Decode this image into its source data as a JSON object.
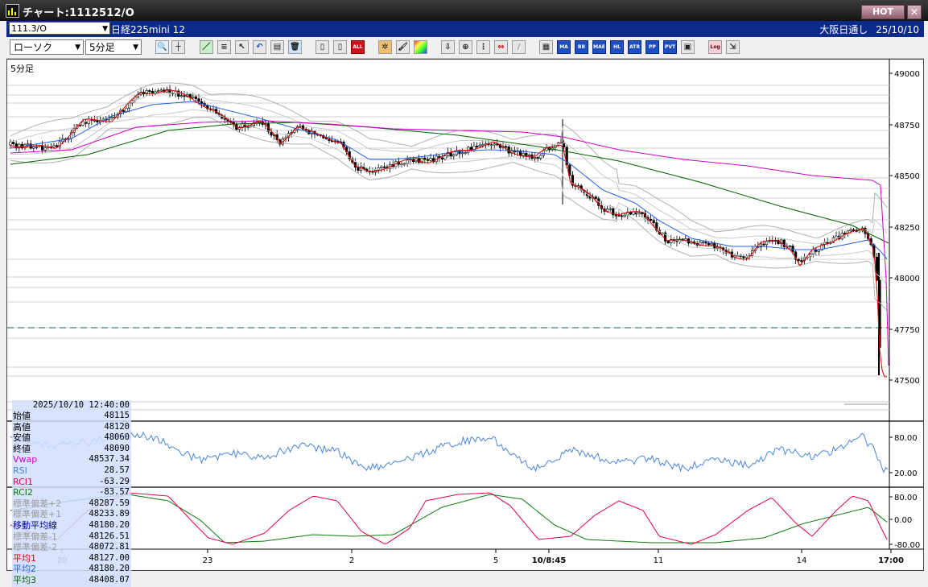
{
  "window": {
    "title": "チャート:1112512/O",
    "hot_label": "HOT",
    "close_label": "✕"
  },
  "infobar": {
    "symbol": "111.3/O",
    "instrument": "日経225mini 12",
    "session": "大阪日通し",
    "date": "25/10/10"
  },
  "toolbar": {
    "chart_style": "ローソク",
    "timeframe": "5分足",
    "all_label": "ALL"
  },
  "chart": {
    "period_label": "5分足",
    "price_axis": [
      "49000",
      "48750",
      "48500",
      "48250",
      "48000",
      "47750",
      "47500"
    ],
    "rsi_axis": [
      "80.00",
      "20.00"
    ],
    "rci_axis": [
      "80.00",
      "0.00",
      "-80.00"
    ],
    "time_axis": [
      {
        "label": "20",
        "bold": false
      },
      {
        "label": "23",
        "bold": false
      },
      {
        "label": "2",
        "bold": false
      },
      {
        "label": "5",
        "bold": false
      },
      {
        "label": "10/8:45",
        "bold": true
      },
      {
        "label": "11",
        "bold": false
      },
      {
        "label": "14",
        "bold": false
      },
      {
        "label": "17:00",
        "bold": true
      }
    ]
  },
  "ohlc": {
    "datetime": "2025/10/10  12:40:00",
    "rows": [
      {
        "label": "始値",
        "value": "48115",
        "color": "#000000"
      },
      {
        "label": "高値",
        "value": "48120",
        "color": "#000000"
      },
      {
        "label": "安値",
        "value": "48060",
        "color": "#000000"
      },
      {
        "label": "終値",
        "value": "48090",
        "color": "#000000"
      },
      {
        "label": "Vwap",
        "value": "48537.34",
        "color": "#d000c8"
      },
      {
        "label": "RSI",
        "value": "28.57",
        "color": "#4a86d8"
      },
      {
        "label": "RCI1",
        "value": "-63.29",
        "color": "#e0004c"
      },
      {
        "label": "RCI2",
        "value": "-83.57",
        "color": "#0a7a0a"
      },
      {
        "label": "標準偏差+2",
        "value": "48287.59",
        "color": "#9a9a9a"
      },
      {
        "label": "標準偏差+1",
        "value": "48233.89",
        "color": "#9a9a9a"
      },
      {
        "label": "移動平均線",
        "value": "48180.20",
        "color": "#0000a0"
      },
      {
        "label": "標準偏差-1",
        "value": "48126.51",
        "color": "#9a9a9a"
      },
      {
        "label": "標準偏差-2",
        "value": "48072.81",
        "color": "#9a9a9a"
      },
      {
        "label": "平均1",
        "value": "48127.00",
        "color": "#e00000"
      },
      {
        "label": "平均2",
        "value": "48180.20",
        "color": "#2060e0"
      },
      {
        "label": "平均3",
        "value": "48408.07",
        "color": "#006000"
      }
    ]
  },
  "colors": {
    "titlebar": "#1a1a1a",
    "infobar": "#0b2a8a",
    "vwap": "#d000c8",
    "ma1": "#e00000",
    "ma2": "#2060e0",
    "ma3": "#006000",
    "bands": "#a0a0a0",
    "rsi": "#4a86d8",
    "rci1": "#e0004c",
    "rci2": "#0a7a0a",
    "dashed": "#006060"
  }
}
